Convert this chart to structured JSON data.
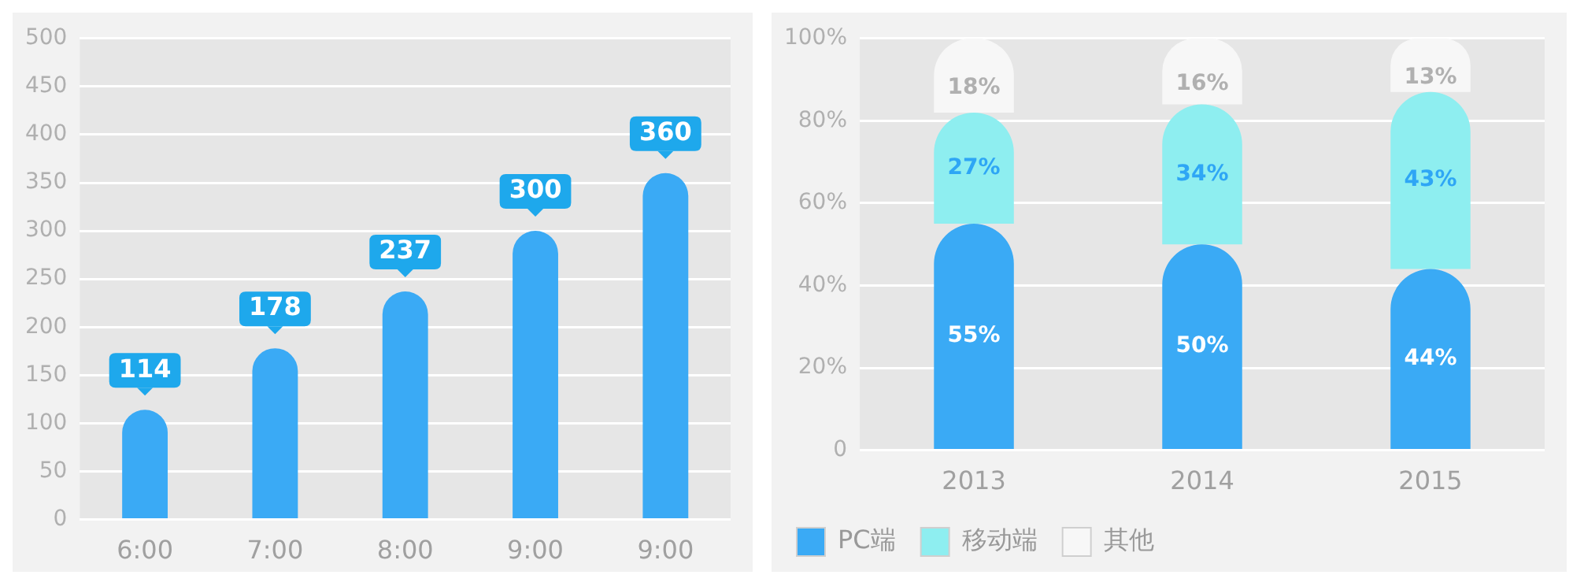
{
  "chart_data": [
    {
      "type": "bar",
      "categories": [
        "6:00",
        "7:00",
        "8:00",
        "9:00",
        "9:00"
      ],
      "values": [
        114,
        178,
        237,
        300,
        360
      ],
      "color": "#3aaaf5",
      "ylim": [
        0,
        500
      ],
      "yticks": [
        0,
        50,
        100,
        150,
        200,
        250,
        300,
        350,
        400,
        450,
        500
      ],
      "grid": "y",
      "data_labels": true
    },
    {
      "type": "bar",
      "stacked": true,
      "categories": [
        "2013",
        "2014",
        "2015"
      ],
      "series": [
        {
          "name": "PC端",
          "color": "#3aaaf5",
          "values": [
            55,
            50,
            44
          ]
        },
        {
          "name": "移动端",
          "color": "#8eeef0",
          "values": [
            27,
            34,
            43
          ]
        },
        {
          "name": "其他",
          "color": "#f7f7f7",
          "values": [
            18,
            16,
            13
          ]
        }
      ],
      "ylim": [
        0,
        100
      ],
      "yticks": [
        0,
        {
          "value": 20,
          "label": "20%"
        },
        {
          "value": 40,
          "label": "40%"
        },
        {
          "value": 60,
          "label": "60%"
        },
        {
          "value": 80,
          "label": "80%"
        },
        {
          "value": 100,
          "label": "100%"
        }
      ],
      "grid": "y",
      "legend": "bottom",
      "value_labels": [
        [
          "55%",
          "50%",
          "44%"
        ],
        [
          "27%",
          "34%",
          "43%"
        ],
        [
          "18%",
          "16%",
          "13%"
        ]
      ]
    }
  ]
}
